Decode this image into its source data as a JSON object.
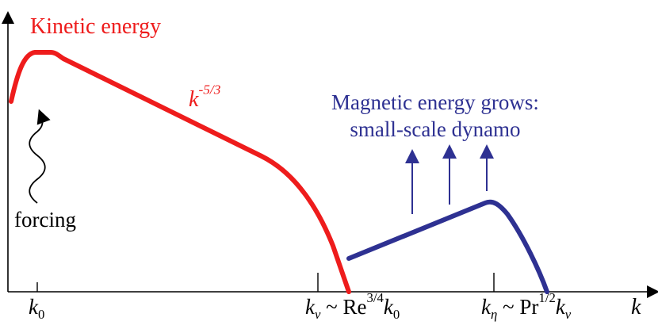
{
  "labels": {
    "kinetic_title": "Kinetic energy",
    "kinetic_slope": "k",
    "kinetic_slope_exp": "-5/3",
    "magnetic_line1": "Magnetic energy grows:",
    "magnetic_line2": "small-scale dynamo",
    "forcing": "forcing"
  },
  "ticks": {
    "k0": {
      "sym": "k",
      "sub": "0"
    },
    "knu": {
      "sym": "k",
      "sub": "ν",
      "rel": "~ Re",
      "exp": "3/4",
      "tail_sym": "k",
      "tail_sub": "0"
    },
    "keta": {
      "sym": "k",
      "sub": "η",
      "rel": "~ Pr",
      "exp": "1/2",
      "tail_sym": "k",
      "tail_sub": "ν"
    }
  },
  "axis": {
    "x_label": "k"
  },
  "colors": {
    "kinetic": "#ee1c1c",
    "magnetic": "#2e3192",
    "axis": "#000000"
  }
}
